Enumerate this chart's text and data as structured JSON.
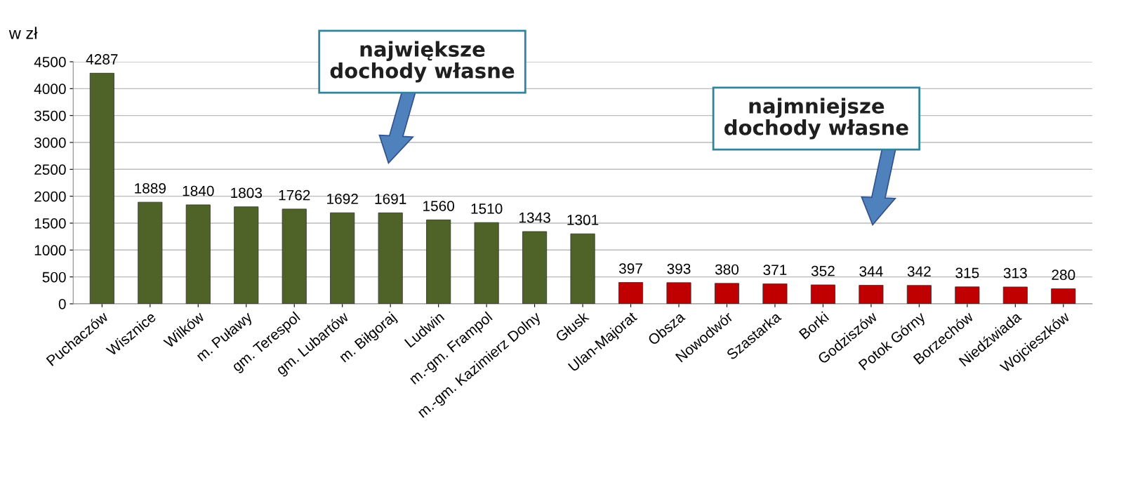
{
  "chart_data": {
    "type": "bar",
    "ylabel": "w zł",
    "categories": [
      "Puchaczów",
      "Wisznice",
      "Wilków",
      "m. Puławy",
      "gm. Terespol",
      "gm. Lubartów",
      "m. Biłgoraj",
      "Ludwin",
      "m.-gm. Frampol",
      "m.-gm. Kazimierz Dolny",
      "Głusk",
      "Ulan-Majorat",
      "Obsza",
      "Nowodwór",
      "Szastarka",
      "Borki",
      "Godziszów",
      "Potok Górny",
      "Borzechów",
      "Niedźwiada",
      "Wojcieszków"
    ],
    "values": [
      4287,
      1889,
      1840,
      1803,
      1762,
      1692,
      1691,
      1560,
      1510,
      1343,
      1301,
      397,
      393,
      380,
      371,
      352,
      344,
      342,
      315,
      313,
      280
    ],
    "colors": [
      "#4f6228",
      "#4f6228",
      "#4f6228",
      "#4f6228",
      "#4f6228",
      "#4f6228",
      "#4f6228",
      "#4f6228",
      "#4f6228",
      "#4f6228",
      "#4f6228",
      "#c00000",
      "#c00000",
      "#c00000",
      "#c00000",
      "#c00000",
      "#c00000",
      "#c00000",
      "#c00000",
      "#c00000",
      "#c00000"
    ],
    "ylim": [
      0,
      4500
    ],
    "yticks": [
      0,
      500,
      1000,
      1500,
      2000,
      2500,
      3000,
      3500,
      4000,
      4500
    ],
    "grid": "y",
    "data_labels": true,
    "annotations": [
      "największe\ndochody własne",
      "najmniejsze\ndochody własne"
    ]
  }
}
